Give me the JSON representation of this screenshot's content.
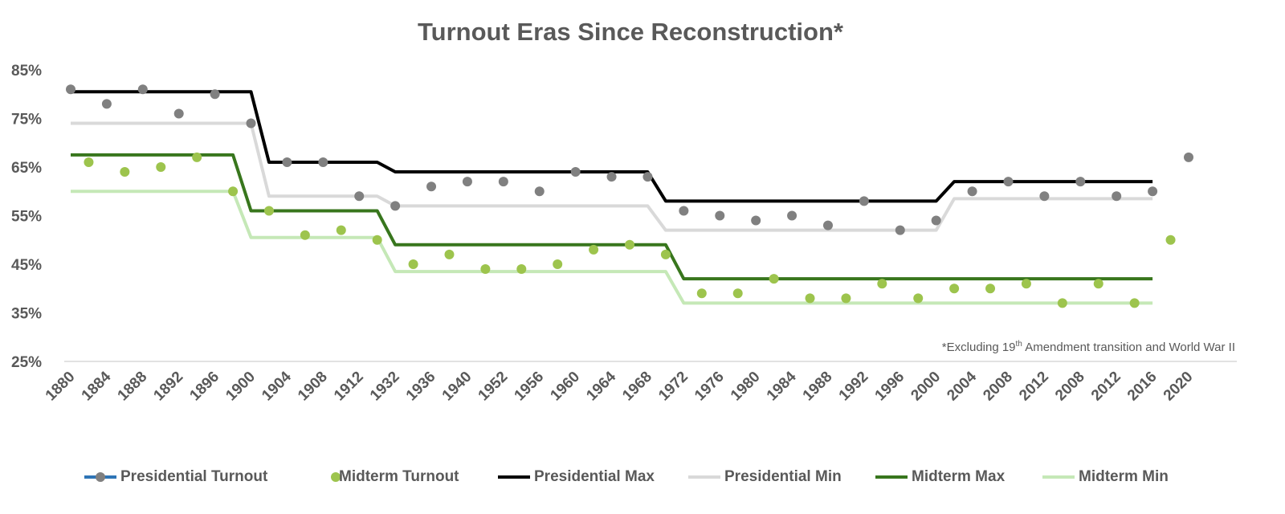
{
  "chart_data": {
    "type": "line",
    "title": "Turnout Eras Since Reconstruction*",
    "note": {
      "text": "*Excluding 19",
      "sup": "th",
      "rest": " Amendment transition and World War II"
    },
    "categories": [
      "1880",
      null,
      "1884",
      null,
      "1888",
      null,
      "1892",
      null,
      "1896",
      null,
      "1900",
      null,
      "1904",
      null,
      "1908",
      null,
      "1912",
      null,
      "1932",
      null,
      "1936",
      null,
      "1940",
      null,
      "1952",
      null,
      "1956",
      null,
      "1960",
      null,
      "1964",
      null,
      "1968",
      null,
      "1972",
      null,
      "1976",
      null,
      "1980",
      null,
      "1984",
      null,
      "1988",
      null,
      "1992",
      null,
      "1996",
      null,
      "2000",
      null,
      "2004",
      null,
      "2008",
      null,
      "2012",
      null,
      "2008",
      null,
      "2012",
      null,
      "2016",
      null,
      "2020"
    ],
    "ylim": [
      25,
      85
    ],
    "yticks": [
      {
        "value": 25,
        "label": "25%"
      },
      {
        "value": 35,
        "label": "35%"
      },
      {
        "value": 45,
        "label": "45%"
      },
      {
        "value": 55,
        "label": "55%"
      },
      {
        "value": 65,
        "label": "65%"
      },
      {
        "value": 75,
        "label": "75%"
      },
      {
        "value": 85,
        "label": "85%"
      }
    ],
    "grid": false,
    "legend": "bottom",
    "series": [
      {
        "name": "Presidential Turnout",
        "color": "#808080",
        "line_color": "#2e75b6",
        "line": false,
        "marker": true,
        "values": [
          81,
          null,
          78,
          null,
          81,
          null,
          76,
          null,
          80,
          null,
          74,
          null,
          66,
          null,
          66,
          null,
          59,
          null,
          57,
          null,
          61,
          null,
          62,
          null,
          62,
          null,
          60,
          null,
          64,
          null,
          63,
          null,
          63,
          null,
          56,
          null,
          55,
          null,
          54,
          null,
          55,
          null,
          53,
          null,
          58,
          null,
          52,
          null,
          54,
          null,
          60,
          null,
          62,
          null,
          59,
          null,
          62,
          null,
          59,
          null,
          60,
          null,
          67
        ]
      },
      {
        "name": "Midterm Turnout",
        "color": "#9dc44d",
        "line": false,
        "marker": true,
        "values": [
          null,
          66,
          null,
          64,
          null,
          65,
          null,
          67,
          null,
          60,
          null,
          56,
          null,
          51,
          null,
          52,
          null,
          50,
          null,
          45,
          null,
          47,
          null,
          44,
          null,
          44,
          null,
          45,
          null,
          48,
          null,
          49,
          null,
          47,
          null,
          39,
          null,
          39,
          null,
          42,
          null,
          38,
          null,
          38,
          null,
          41,
          null,
          38,
          null,
          40,
          null,
          40,
          null,
          41,
          null,
          37,
          null,
          41,
          null,
          37,
          null,
          50,
          null
        ]
      },
      {
        "name": "Presidential Max",
        "color": "#000000",
        "line": true,
        "marker": false,
        "values": [
          80.5,
          80.5,
          80.5,
          80.5,
          80.5,
          80.5,
          80.5,
          80.5,
          80.5,
          80.5,
          80.5,
          66,
          66,
          66,
          66,
          66,
          66,
          66,
          64,
          64,
          64,
          64,
          64,
          64,
          64,
          64,
          64,
          64,
          64,
          64,
          64,
          64,
          64,
          58,
          58,
          58,
          58,
          58,
          58,
          58,
          58,
          58,
          58,
          58,
          58,
          58,
          58,
          58,
          58,
          62,
          62,
          62,
          62,
          62,
          62,
          62,
          62,
          62,
          62,
          62,
          62,
          null,
          null
        ]
      },
      {
        "name": "Presidential Min",
        "color": "#d9d9d9",
        "line": true,
        "marker": false,
        "values": [
          74,
          74,
          74,
          74,
          74,
          74,
          74,
          74,
          74,
          74,
          74,
          59,
          59,
          59,
          59,
          59,
          59,
          59,
          57,
          57,
          57,
          57,
          57,
          57,
          57,
          57,
          57,
          57,
          57,
          57,
          57,
          57,
          57,
          52,
          52,
          52,
          52,
          52,
          52,
          52,
          52,
          52,
          52,
          52,
          52,
          52,
          52,
          52,
          52,
          58.5,
          58.5,
          58.5,
          58.5,
          58.5,
          58.5,
          58.5,
          58.5,
          58.5,
          58.5,
          58.5,
          58.5,
          null,
          null
        ]
      },
      {
        "name": "Midterm Max",
        "color": "#38761d",
        "line": true,
        "marker": false,
        "values": [
          67.5,
          67.5,
          67.5,
          67.5,
          67.5,
          67.5,
          67.5,
          67.5,
          67.5,
          67.5,
          56,
          56,
          56,
          56,
          56,
          56,
          56,
          56,
          49,
          49,
          49,
          49,
          49,
          49,
          49,
          49,
          49,
          49,
          49,
          49,
          49,
          49,
          49,
          49,
          42,
          42,
          42,
          42,
          42,
          42,
          42,
          42,
          42,
          42,
          42,
          42,
          42,
          42,
          42,
          42,
          42,
          42,
          42,
          42,
          42,
          42,
          42,
          42,
          42,
          42,
          42,
          null,
          null
        ]
      },
      {
        "name": "Midterm Min",
        "color": "#c5e8b7",
        "line": true,
        "marker": false,
        "values": [
          60,
          60,
          60,
          60,
          60,
          60,
          60,
          60,
          60,
          60,
          50.5,
          50.5,
          50.5,
          50.5,
          50.5,
          50.5,
          50.5,
          50.5,
          43.5,
          43.5,
          43.5,
          43.5,
          43.5,
          43.5,
          43.5,
          43.5,
          43.5,
          43.5,
          43.5,
          43.5,
          43.5,
          43.5,
          43.5,
          43.5,
          37,
          37,
          37,
          37,
          37,
          37,
          37,
          37,
          37,
          37,
          37,
          37,
          37,
          37,
          37,
          37,
          37,
          37,
          37,
          37,
          37,
          37,
          37,
          37,
          37,
          37,
          37,
          null,
          null
        ]
      }
    ]
  }
}
